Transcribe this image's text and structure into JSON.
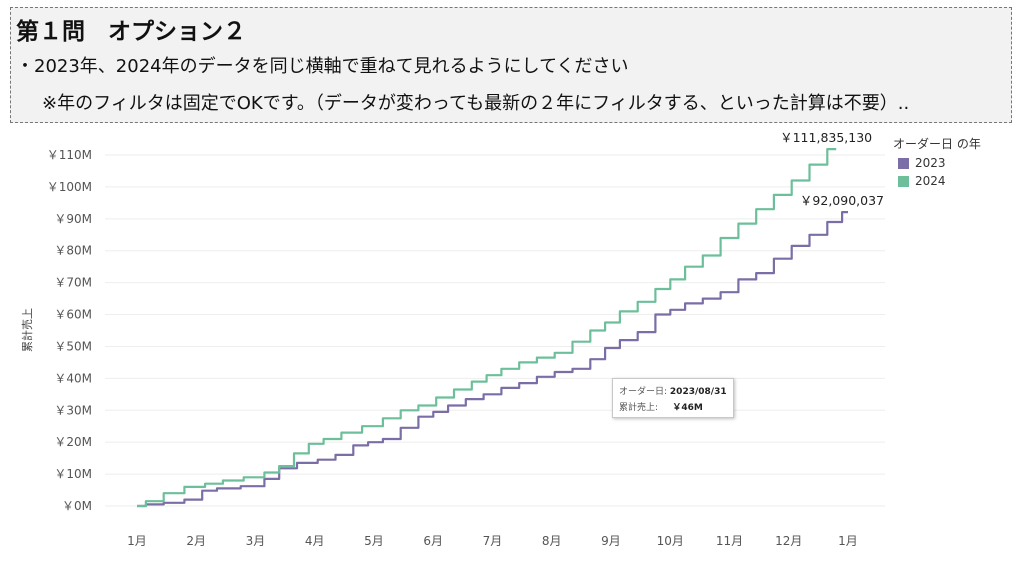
{
  "header": {
    "title": "第１問　オプション２",
    "line1": "・2023年、2024年のデータを同じ横軸で重ねて見れるようにしてください",
    "line2": "※年のフィルタは固定でOKです。（データが変わっても最新の２年にフィルタする、といった計算は不要）.."
  },
  "tooltip": {
    "date_label": "オーダー日:",
    "date_value": "2023/08/31",
    "sales_label": "累計売上:",
    "sales_value": "￥46M"
  },
  "colors": {
    "series_2023": "#7b6ea6",
    "series_2024": "#6cbf9a",
    "gridline": "#eeeeee"
  },
  "chart_data": {
    "type": "line",
    "title": "",
    "xlabel": "",
    "ylabel": "累計売上",
    "x_ticks": [
      "1月",
      "2月",
      "3月",
      "4月",
      "5月",
      "6月",
      "7月",
      "8月",
      "9月",
      "10月",
      "11月",
      "12月",
      "1月"
    ],
    "y_ticks": [
      "￥0M",
      "￥10M",
      "￥20M",
      "￥30M",
      "￥40M",
      "￥50M",
      "￥60M",
      "￥70M",
      "￥80M",
      "￥90M",
      "￥100M",
      "￥110M"
    ],
    "ylim": [
      0,
      110000000
    ],
    "xlim": [
      0,
      12
    ],
    "x_unit": "month",
    "grid": true,
    "legend_title": "オーダー日 の年",
    "legend_position": "right",
    "series": [
      {
        "name": "2023",
        "end_label": "￥92,090,037",
        "x": [
          0,
          0.3,
          0.6,
          1.0,
          1.2,
          1.5,
          2.0,
          2.3,
          2.5,
          2.9,
          3.2,
          3.5,
          3.8,
          4.0,
          4.3,
          4.6,
          4.9,
          5.1,
          5.4,
          5.7,
          6.0,
          6.3,
          6.6,
          6.9,
          7.2,
          7.5,
          7.8,
          8.0,
          8.3,
          8.6,
          8.9,
          9.1,
          9.4,
          9.7,
          10.0,
          10.3,
          10.6,
          10.9,
          11.2,
          11.5,
          11.8,
          12.0
        ],
        "values": [
          0,
          500000,
          1000000,
          2000000,
          4800000,
          5500000,
          6200000,
          8500000,
          11800000,
          13500000,
          14500000,
          16000000,
          19000000,
          20000000,
          21000000,
          24500000,
          28000000,
          29500000,
          31500000,
          33500000,
          35000000,
          37000000,
          38500000,
          40500000,
          42000000,
          43000000,
          46000000,
          49500000,
          52000000,
          54500000,
          60000000,
          61500000,
          63500000,
          65000000,
          67000000,
          71000000,
          73000000,
          77500000,
          81500000,
          85000000,
          89000000,
          92090037
        ]
      },
      {
        "name": "2024",
        "end_label": "￥111,835,130",
        "x": [
          0,
          0.3,
          0.6,
          1.0,
          1.3,
          1.6,
          2.0,
          2.3,
          2.5,
          2.8,
          3.0,
          3.3,
          3.6,
          4.0,
          4.3,
          4.6,
          4.9,
          5.2,
          5.5,
          5.8,
          6.0,
          6.3,
          6.6,
          6.9,
          7.2,
          7.5,
          7.8,
          8.0,
          8.3,
          8.6,
          8.9,
          9.1,
          9.4,
          9.7,
          10.0,
          10.3,
          10.6,
          10.9,
          11.2,
          11.5,
          11.8
        ],
        "values": [
          0,
          1500000,
          4000000,
          6000000,
          7000000,
          8000000,
          9000000,
          10500000,
          12500000,
          16500000,
          19500000,
          21000000,
          23000000,
          25000000,
          27500000,
          30000000,
          31500000,
          34000000,
          36500000,
          39000000,
          41000000,
          43000000,
          45000000,
          46500000,
          48000000,
          51500000,
          55000000,
          57500000,
          61000000,
          64000000,
          68000000,
          71000000,
          75000000,
          78500000,
          84000000,
          88500000,
          93000000,
          97500000,
          102000000,
          107000000,
          111835130
        ]
      }
    ]
  }
}
